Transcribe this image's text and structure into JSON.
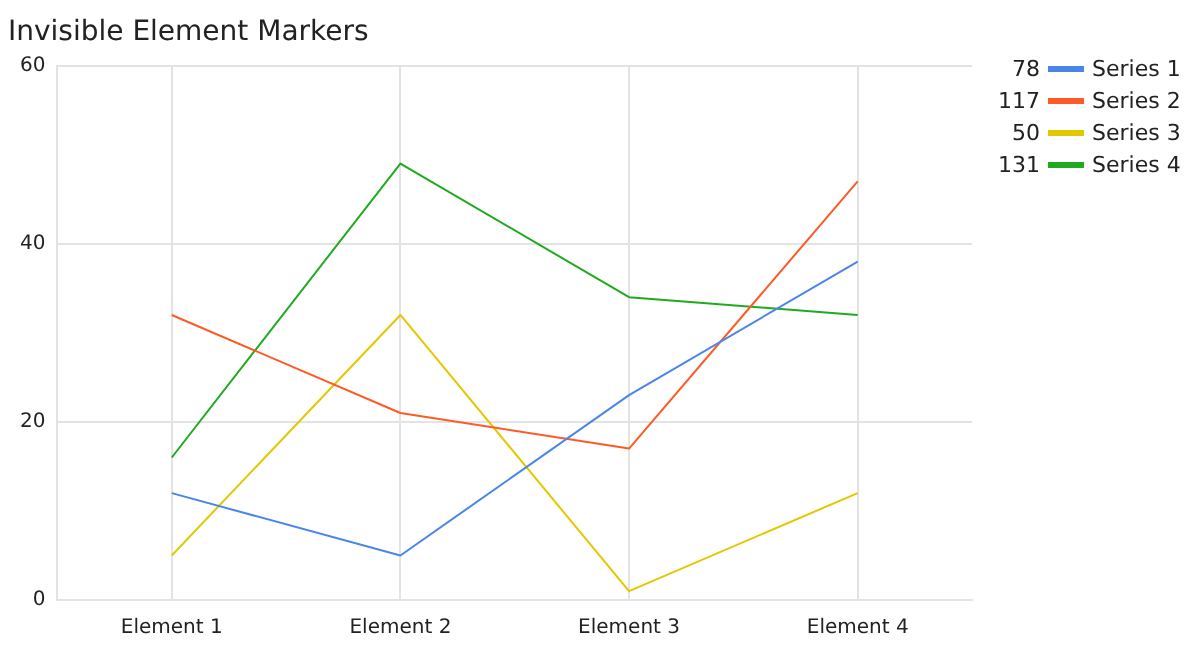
{
  "chart_data": {
    "type": "line",
    "title": "Invisible Element Markers",
    "categories": [
      "Element 1",
      "Element 2",
      "Element 3",
      "Element 4"
    ],
    "series": [
      {
        "name": "Series 1",
        "color": "#4a86e8",
        "values": [
          12,
          5,
          23,
          38
        ]
      },
      {
        "name": "Series 2",
        "color": "#ff5a26",
        "values": [
          32,
          21,
          17,
          47
        ]
      },
      {
        "name": "Series 3",
        "color": "#e3c800",
        "values": [
          5,
          32,
          1,
          12
        ]
      },
      {
        "name": "Series 4",
        "color": "#1faa1f",
        "values": [
          16,
          49,
          34,
          32
        ]
      }
    ],
    "totals": [
      "78",
      "117",
      "50",
      "131"
    ],
    "ylim": [
      0,
      60
    ],
    "yticks": [
      0,
      20,
      40,
      60
    ],
    "grid": true,
    "legend": "top right",
    "marker": "none",
    "line_style": "solid"
  }
}
